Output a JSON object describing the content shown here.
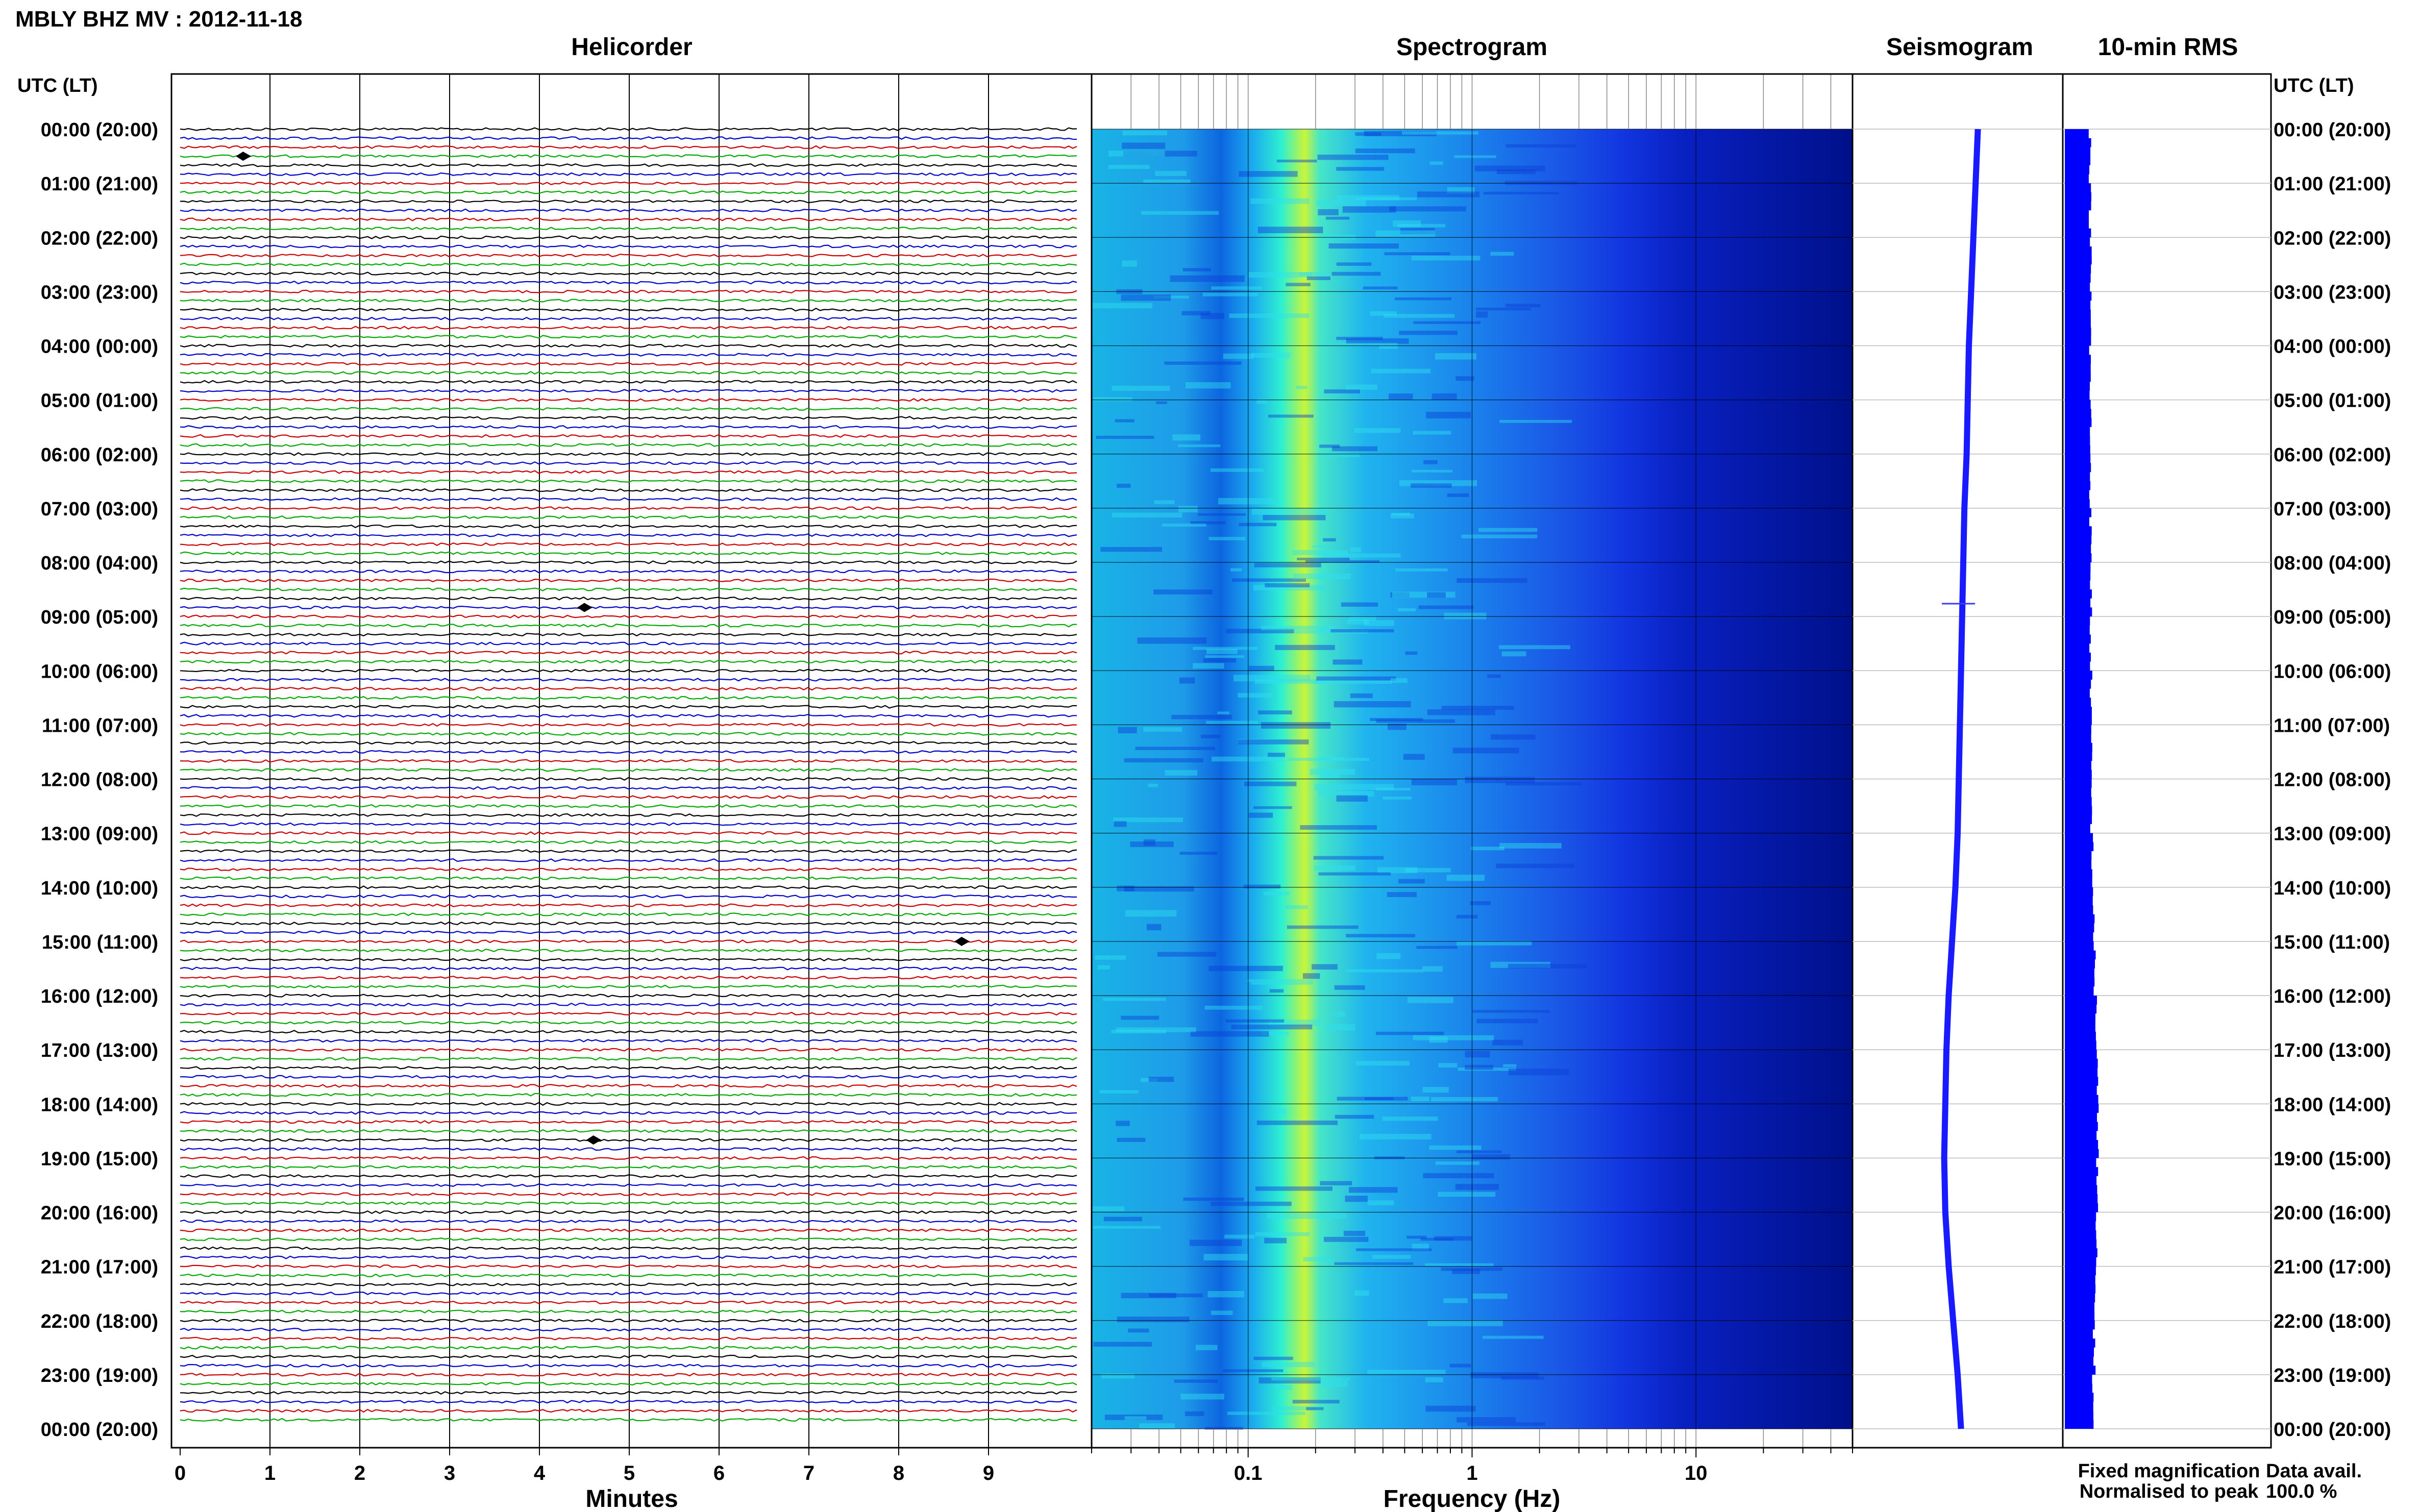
{
  "header": {
    "station_title": "MBLY BHZ MV : 2012-11-18",
    "utc_lt_left": "UTC (LT)",
    "utc_lt_right": "UTC (LT)"
  },
  "panels": {
    "helicorder": "Helicorder",
    "spectrogram": "Spectrogram",
    "seismogram": "Seismogram",
    "rms": "10-min RMS"
  },
  "time_labels": [
    "00:00 (20:00)",
    "01:00 (21:00)",
    "02:00 (22:00)",
    "03:00 (23:00)",
    "04:00 (00:00)",
    "05:00 (01:00)",
    "06:00 (02:00)",
    "07:00 (03:00)",
    "08:00 (04:00)",
    "09:00 (05:00)",
    "10:00 (06:00)",
    "11:00 (07:00)",
    "12:00 (08:00)",
    "13:00 (09:00)",
    "14:00 (10:00)",
    "15:00 (11:00)",
    "16:00 (12:00)",
    "17:00 (13:00)",
    "18:00 (14:00)",
    "19:00 (15:00)",
    "20:00 (16:00)",
    "21:00 (17:00)",
    "22:00 (18:00)",
    "23:00 (19:00)",
    "00:00 (20:00)"
  ],
  "legend": {
    "fixed_magnification": "Fixed magnification",
    "normalised_to_peak": "Normalised to peak",
    "data_avail_label": "Data avail.",
    "data_avail_value": "100.0 %"
  },
  "colors": {
    "fixed_magnification": "#0000ff",
    "normalised_to_peak": "#ff0000",
    "trace_cycle": [
      "#000000",
      "#0000cc",
      "#cc0000",
      "#00aa00"
    ],
    "seismogram_trace": "#1a1aff",
    "rms_fill": "#0000ff"
  },
  "chart_data": [
    {
      "type": "line",
      "title": "Helicorder",
      "xlabel": "Minutes",
      "x_ticks": [
        "0",
        "1",
        "2",
        "3",
        "4",
        "5",
        "6",
        "7",
        "8",
        "9"
      ],
      "xlim": [
        0,
        10
      ],
      "rows": 144,
      "minutes_per_row": 10,
      "notable_events": [
        {
          "time_utc": "00:30",
          "minute": 0.7
        },
        {
          "time_utc": "08:50",
          "minute": 4.5
        },
        {
          "time_utc": "15:00",
          "minute": 8.7
        },
        {
          "time_utc": "18:40",
          "minute": 4.6
        }
      ]
    },
    {
      "type": "heatmap",
      "title": "Spectrogram",
      "xlabel": "Frequency (Hz)",
      "x_scale": "log",
      "xlim": [
        0.02,
        50
      ],
      "x_ticks": [
        "0.1",
        "1",
        "10"
      ],
      "dominant_frequency_hz": 0.2,
      "colormap": [
        "#00008b",
        "#0000ff",
        "#1e90ff",
        "#00ffff",
        "#7fffd4",
        "#ffff00"
      ]
    },
    {
      "type": "line",
      "title": "Seismogram",
      "mean_trace_offset_by_hour": [
        0.18,
        0.16,
        0.14,
        0.12,
        0.1,
        0.09,
        0.08,
        0.06,
        0.05,
        0.04,
        0.03,
        0.02,
        0.01,
        0.0,
        -0.02,
        -0.05,
        -0.08,
        -0.1,
        -0.11,
        -0.12,
        -0.11,
        -0.08,
        -0.04,
        0.0,
        0.03
      ]
    },
    {
      "type": "bar",
      "title": "10-min RMS",
      "relative_rms_by_hour": [
        0.55,
        0.55,
        0.56,
        0.56,
        0.55,
        0.56,
        0.56,
        0.56,
        0.57,
        0.56,
        0.57,
        0.57,
        0.58,
        0.6,
        0.62,
        0.65,
        0.68,
        0.7,
        0.72,
        0.7,
        0.68,
        0.66,
        0.64,
        0.62,
        0.6
      ]
    }
  ]
}
